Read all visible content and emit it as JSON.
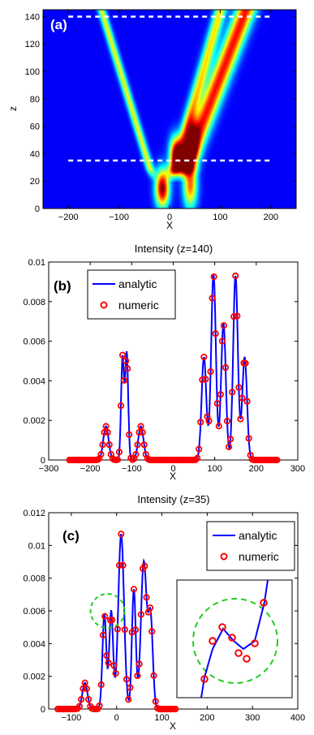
{
  "chart_data": [
    {
      "panel_label": "(a)",
      "type": "heatmap",
      "title": "",
      "xlabel": "X",
      "ylabel": "z",
      "xlim": [
        -250,
        250
      ],
      "ylim": [
        0,
        145
      ],
      "xticks": [
        "-200",
        "-100",
        "0",
        "100",
        "200"
      ],
      "yticks": [
        "0",
        "20",
        "40",
        "60",
        "80",
        "100",
        "120",
        "140"
      ],
      "colormap": "jet",
      "dashed_lines_z": [
        140,
        35
      ],
      "beams": [
        {
          "x0": -40,
          "x1": -135,
          "z0": 30,
          "z1": 145,
          "width": 8,
          "amp": 0.55
        },
        {
          "x0": 30,
          "x1": 150,
          "z0": 30,
          "z1": 145,
          "width": 20,
          "amp": 0.85
        },
        {
          "x0": 10,
          "x1": 100,
          "z0": 30,
          "z1": 145,
          "width": 12,
          "amp": 0.6
        }
      ],
      "core_blobs": [
        {
          "x": -15,
          "z": 15,
          "sx": 14,
          "sz": 14,
          "amp": 1.0
        },
        {
          "x": 40,
          "z": 18,
          "sx": 14,
          "sz": 18,
          "amp": 0.75
        },
        {
          "x": 10,
          "z": 42,
          "sx": 12,
          "sz": 12,
          "amp": 0.7
        },
        {
          "x": 45,
          "z": 50,
          "sx": 12,
          "sz": 14,
          "amp": 0.55
        }
      ]
    },
    {
      "panel_label": "(b)",
      "type": "line",
      "title": "Intensity (z=140)",
      "xlabel": "X",
      "ylabel": "",
      "xlim": [
        -300,
        300
      ],
      "ylim": [
        0,
        0.01
      ],
      "xticks": [
        "-300",
        "-200",
        "-100",
        "0",
        "100",
        "200",
        "300"
      ],
      "yticks": [
        "0",
        "0.002",
        "0.004",
        "0.006",
        "0.008",
        "0.01"
      ],
      "legend_position": "top-left",
      "series": [
        {
          "name": "analytic",
          "style": "line",
          "color": "#0000ff"
        },
        {
          "name": "numeric",
          "style": "circle",
          "color": "#ff0000"
        }
      ],
      "x_range": [
        -250,
        250
      ],
      "peaks": [
        {
          "x": -162,
          "y": 0.0017,
          "w": 9
        },
        {
          "x": -122,
          "y": 0.0052,
          "w": 5
        },
        {
          "x": -112,
          "y": 0.0054,
          "w": 5
        },
        {
          "x": -78,
          "y": 0.0017,
          "w": 9
        },
        {
          "x": 74,
          "y": 0.0052,
          "w": 8
        },
        {
          "x": 97,
          "y": 0.0094,
          "w": 8
        },
        {
          "x": 121,
          "y": 0.0069,
          "w": 8
        },
        {
          "x": 150,
          "y": 0.0093,
          "w": 8
        },
        {
          "x": 172,
          "y": 0.0052,
          "w": 8
        }
      ]
    },
    {
      "panel_label": "(c)",
      "type": "line",
      "title": "Intensity (z=35)",
      "xlabel": "X",
      "ylabel": "",
      "xlim": [
        -150,
        400
      ],
      "ylim": [
        0,
        0.012
      ],
      "xticks": [
        "-100",
        "0",
        "100",
        "200",
        "300",
        "400"
      ],
      "yticks": [
        "0",
        "0.002",
        "0.004",
        "0.006",
        "0.008",
        "0.01",
        "0.012"
      ],
      "legend_position": "top-right",
      "series": [
        {
          "name": "analytic",
          "style": "line",
          "color": "#0000ff"
        },
        {
          "name": "numeric",
          "style": "circle",
          "color": "#ff0000"
        }
      ],
      "x_range": [
        -130,
        130
      ],
      "peaks": [
        {
          "x": -70,
          "y": 0.0016,
          "w": 8
        },
        {
          "x": -27,
          "y": 0.0058,
          "w": 6
        },
        {
          "x": -12,
          "y": 0.006,
          "w": 6
        },
        {
          "x": 10,
          "y": 0.0107,
          "w": 9
        },
        {
          "x": 38,
          "y": 0.0073,
          "w": 6
        },
        {
          "x": 60,
          "y": 0.009,
          "w": 9
        },
        {
          "x": 75,
          "y": 0.0055,
          "w": 7
        }
      ],
      "highlight_circle": {
        "x": -20,
        "y": 0.006,
        "color": "#22cc22"
      },
      "inset": true
    }
  ]
}
